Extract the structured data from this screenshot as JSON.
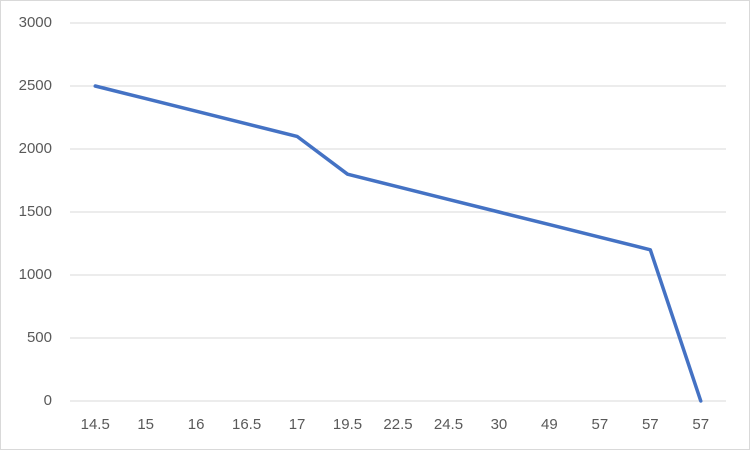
{
  "chart_data": {
    "type": "line",
    "categories": [
      "14.5",
      "15",
      "16",
      "16.5",
      "17",
      "19.5",
      "22.5",
      "24.5",
      "30",
      "49",
      "57",
      "57",
      "57"
    ],
    "values": [
      2500,
      2400,
      2300,
      2200,
      2100,
      1800,
      1700,
      1600,
      1500,
      1400,
      1300,
      1200,
      0
    ],
    "color": "#4472c4",
    "ylim": [
      0,
      3000
    ],
    "yticks": [
      0,
      500,
      1000,
      1500,
      2000,
      2500,
      3000
    ],
    "grid": true
  }
}
